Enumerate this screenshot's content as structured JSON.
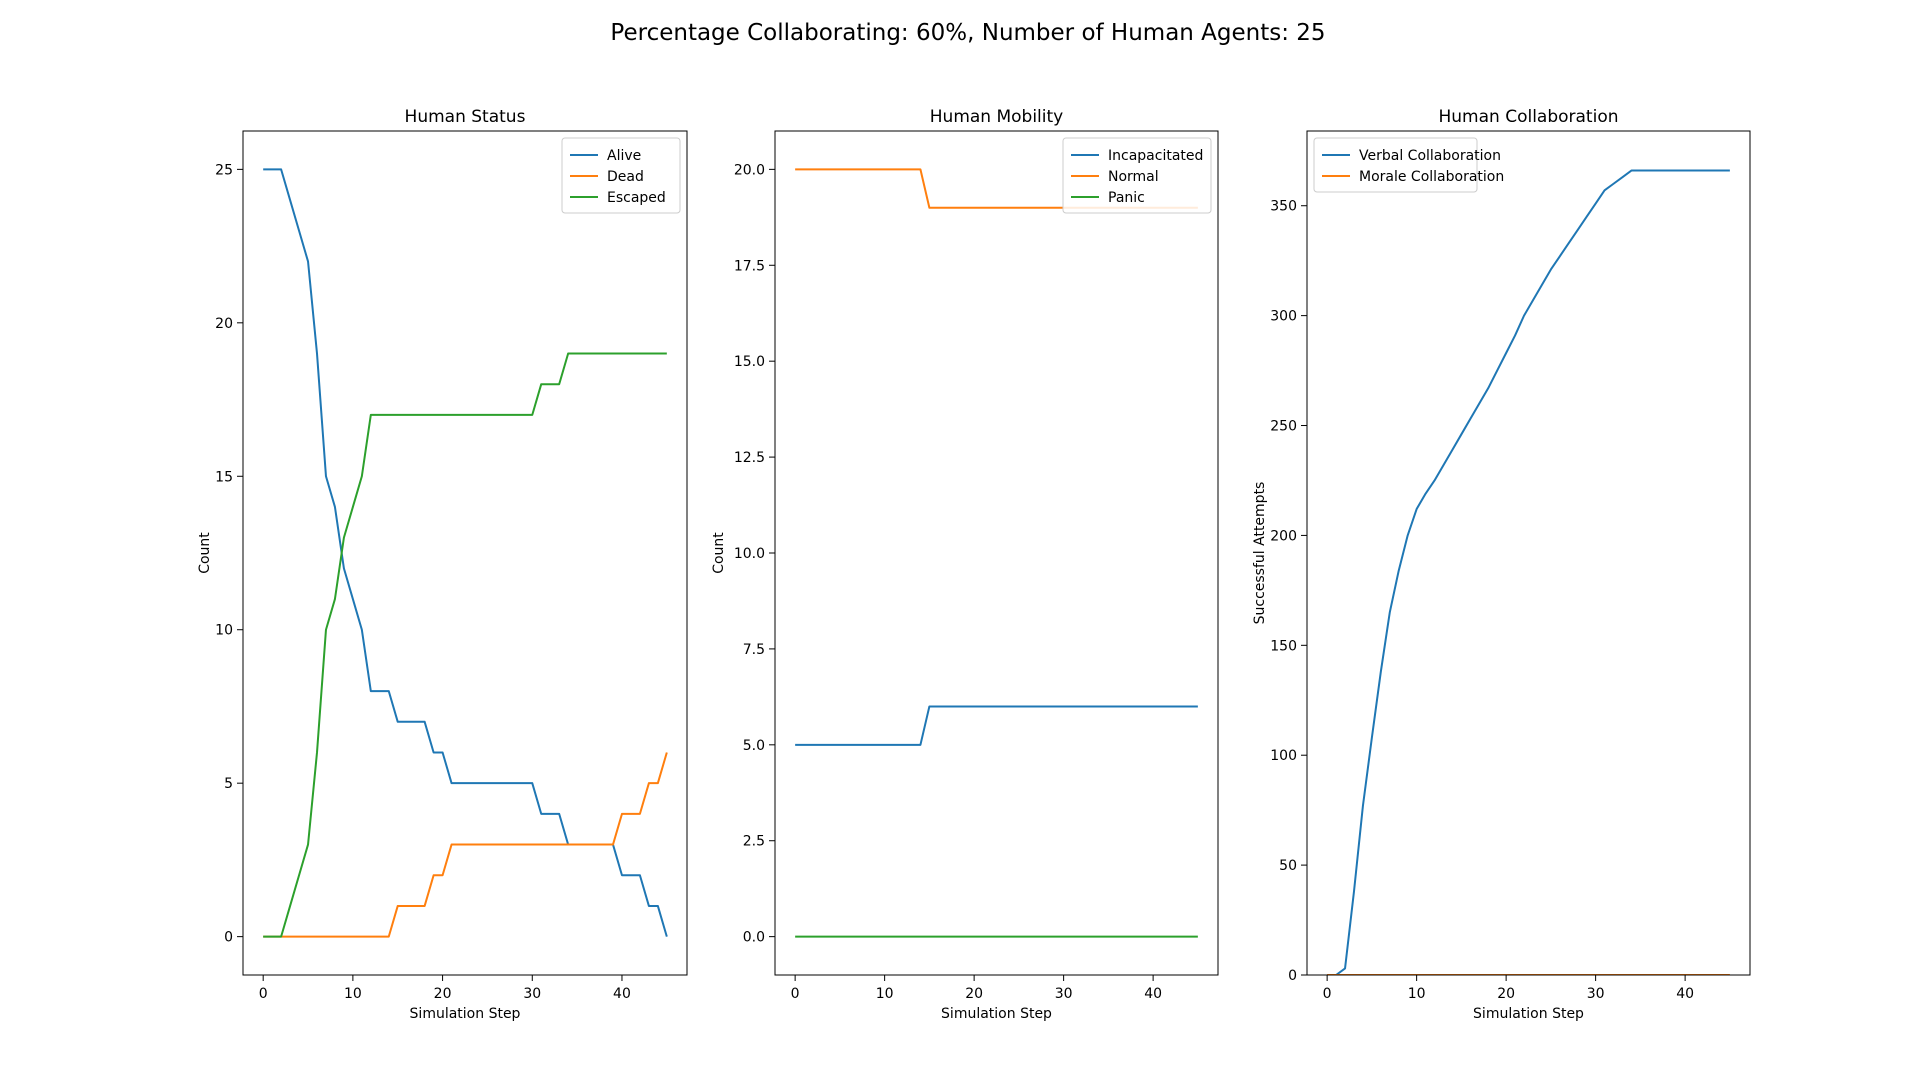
{
  "figure": {
    "suptitle": "Percentage Collaborating: 60%, Number of Human Agents: 25"
  },
  "chart_data": [
    {
      "type": "line",
      "title": "Human Status",
      "xlabel": "Simulation Step",
      "ylabel": "Count",
      "xlim": [
        -2.25,
        47.25
      ],
      "ylim": [
        -1.25,
        26.25
      ],
      "xticks": [
        0,
        10,
        20,
        30,
        40
      ],
      "yticks": [
        0,
        5,
        10,
        15,
        20,
        25
      ],
      "legend_position": "top-right",
      "grid": false,
      "x": [
        0,
        1,
        2,
        3,
        4,
        5,
        6,
        7,
        8,
        9,
        10,
        11,
        12,
        13,
        14,
        15,
        16,
        17,
        18,
        19,
        20,
        21,
        22,
        23,
        24,
        25,
        26,
        27,
        28,
        29,
        30,
        31,
        32,
        33,
        34,
        35,
        36,
        37,
        38,
        39,
        40,
        41,
        42,
        43,
        44,
        45
      ],
      "series": [
        {
          "name": "Alive",
          "color": "#1f77b4",
          "values": [
            25,
            25,
            25,
            24,
            23,
            22,
            19,
            15,
            14,
            12,
            11,
            10,
            8,
            8,
            8,
            7,
            7,
            7,
            7,
            6,
            6,
            5,
            5,
            5,
            5,
            5,
            5,
            5,
            5,
            5,
            5,
            4,
            4,
            4,
            3,
            3,
            3,
            3,
            3,
            3,
            2,
            2,
            2,
            1,
            1,
            0
          ]
        },
        {
          "name": "Dead",
          "color": "#ff7f0e",
          "values": [
            0,
            0,
            0,
            0,
            0,
            0,
            0,
            0,
            0,
            0,
            0,
            0,
            0,
            0,
            0,
            1,
            1,
            1,
            1,
            2,
            2,
            3,
            3,
            3,
            3,
            3,
            3,
            3,
            3,
            3,
            3,
            3,
            3,
            3,
            3,
            3,
            3,
            3,
            3,
            3,
            4,
            4,
            4,
            5,
            5,
            6
          ]
        },
        {
          "name": "Escaped",
          "color": "#2ca02c",
          "values": [
            0,
            0,
            0,
            1,
            2,
            3,
            6,
            10,
            11,
            13,
            14,
            15,
            17,
            17,
            17,
            17,
            17,
            17,
            17,
            17,
            17,
            17,
            17,
            17,
            17,
            17,
            17,
            17,
            17,
            17,
            17,
            18,
            18,
            18,
            19,
            19,
            19,
            19,
            19,
            19,
            19,
            19,
            19,
            19,
            19,
            19
          ]
        }
      ]
    },
    {
      "type": "line",
      "title": "Human Mobility",
      "xlabel": "Simulation Step",
      "ylabel": "Count",
      "xlim": [
        -2.25,
        47.25
      ],
      "ylim": [
        -1.0,
        21.0
      ],
      "xticks": [
        0,
        10,
        20,
        30,
        40
      ],
      "yticks": [
        0.0,
        2.5,
        5.0,
        7.5,
        10.0,
        12.5,
        15.0,
        17.5,
        20.0
      ],
      "yticks_format": "1dp",
      "legend_position": "top-right",
      "grid": false,
      "x": [
        0,
        1,
        2,
        3,
        4,
        5,
        6,
        7,
        8,
        9,
        10,
        11,
        12,
        13,
        14,
        15,
        16,
        17,
        18,
        19,
        20,
        21,
        22,
        23,
        24,
        25,
        26,
        27,
        28,
        29,
        30,
        31,
        32,
        33,
        34,
        35,
        36,
        37,
        38,
        39,
        40,
        41,
        42,
        43,
        44,
        45
      ],
      "series": [
        {
          "name": "Incapacitated",
          "color": "#1f77b4",
          "values": [
            5,
            5,
            5,
            5,
            5,
            5,
            5,
            5,
            5,
            5,
            5,
            5,
            5,
            5,
            5,
            6,
            6,
            6,
            6,
            6,
            6,
            6,
            6,
            6,
            6,
            6,
            6,
            6,
            6,
            6,
            6,
            6,
            6,
            6,
            6,
            6,
            6,
            6,
            6,
            6,
            6,
            6,
            6,
            6,
            6,
            6
          ]
        },
        {
          "name": "Normal",
          "color": "#ff7f0e",
          "values": [
            20,
            20,
            20,
            20,
            20,
            20,
            20,
            20,
            20,
            20,
            20,
            20,
            20,
            20,
            20,
            19,
            19,
            19,
            19,
            19,
            19,
            19,
            19,
            19,
            19,
            19,
            19,
            19,
            19,
            19,
            19,
            19,
            19,
            19,
            19,
            19,
            19,
            19,
            19,
            19,
            19,
            19,
            19,
            19,
            19,
            19
          ]
        },
        {
          "name": "Panic",
          "color": "#2ca02c",
          "values": [
            0,
            0,
            0,
            0,
            0,
            0,
            0,
            0,
            0,
            0,
            0,
            0,
            0,
            0,
            0,
            0,
            0,
            0,
            0,
            0,
            0,
            0,
            0,
            0,
            0,
            0,
            0,
            0,
            0,
            0,
            0,
            0,
            0,
            0,
            0,
            0,
            0,
            0,
            0,
            0,
            0,
            0,
            0,
            0,
            0,
            0
          ]
        }
      ]
    },
    {
      "type": "line",
      "title": "Human Collaboration",
      "xlabel": "Simulation Step",
      "ylabel": "Successful Attempts",
      "xlim": [
        -2.25,
        47.25
      ],
      "ylim": [
        0,
        384
      ],
      "xticks": [
        0,
        10,
        20,
        30,
        40
      ],
      "yticks": [
        0,
        50,
        100,
        150,
        200,
        250,
        300,
        350
      ],
      "legend_position": "top-left",
      "grid": false,
      "x": [
        0,
        1,
        2,
        3,
        4,
        5,
        6,
        7,
        8,
        9,
        10,
        11,
        12,
        13,
        14,
        15,
        16,
        17,
        18,
        19,
        20,
        21,
        22,
        23,
        24,
        25,
        26,
        27,
        28,
        29,
        30,
        31,
        32,
        33,
        34,
        35,
        36,
        37,
        38,
        39,
        40,
        41,
        42,
        43,
        44,
        45
      ],
      "series": [
        {
          "name": "Verbal Collaboration",
          "color": "#1f77b4",
          "values": [
            0,
            0,
            3,
            38,
            77,
            108,
            138,
            165,
            184,
            200,
            212,
            219,
            225,
            232,
            239,
            246,
            253,
            260,
            267,
            275,
            283,
            291,
            300,
            307,
            314,
            321,
            327,
            333,
            339,
            345,
            351,
            357,
            360,
            363,
            366,
            366,
            366,
            366,
            366,
            366,
            366,
            366,
            366,
            366,
            366,
            366
          ]
        },
        {
          "name": "Morale Collaboration",
          "color": "#ff7f0e",
          "values": [
            0,
            0,
            0,
            0,
            0,
            0,
            0,
            0,
            0,
            0,
            0,
            0,
            0,
            0,
            0,
            0,
            0,
            0,
            0,
            0,
            0,
            0,
            0,
            0,
            0,
            0,
            0,
            0,
            0,
            0,
            0,
            0,
            0,
            0,
            0,
            0,
            0,
            0,
            0,
            0,
            0,
            0,
            0,
            0,
            0,
            0
          ]
        }
      ]
    }
  ]
}
